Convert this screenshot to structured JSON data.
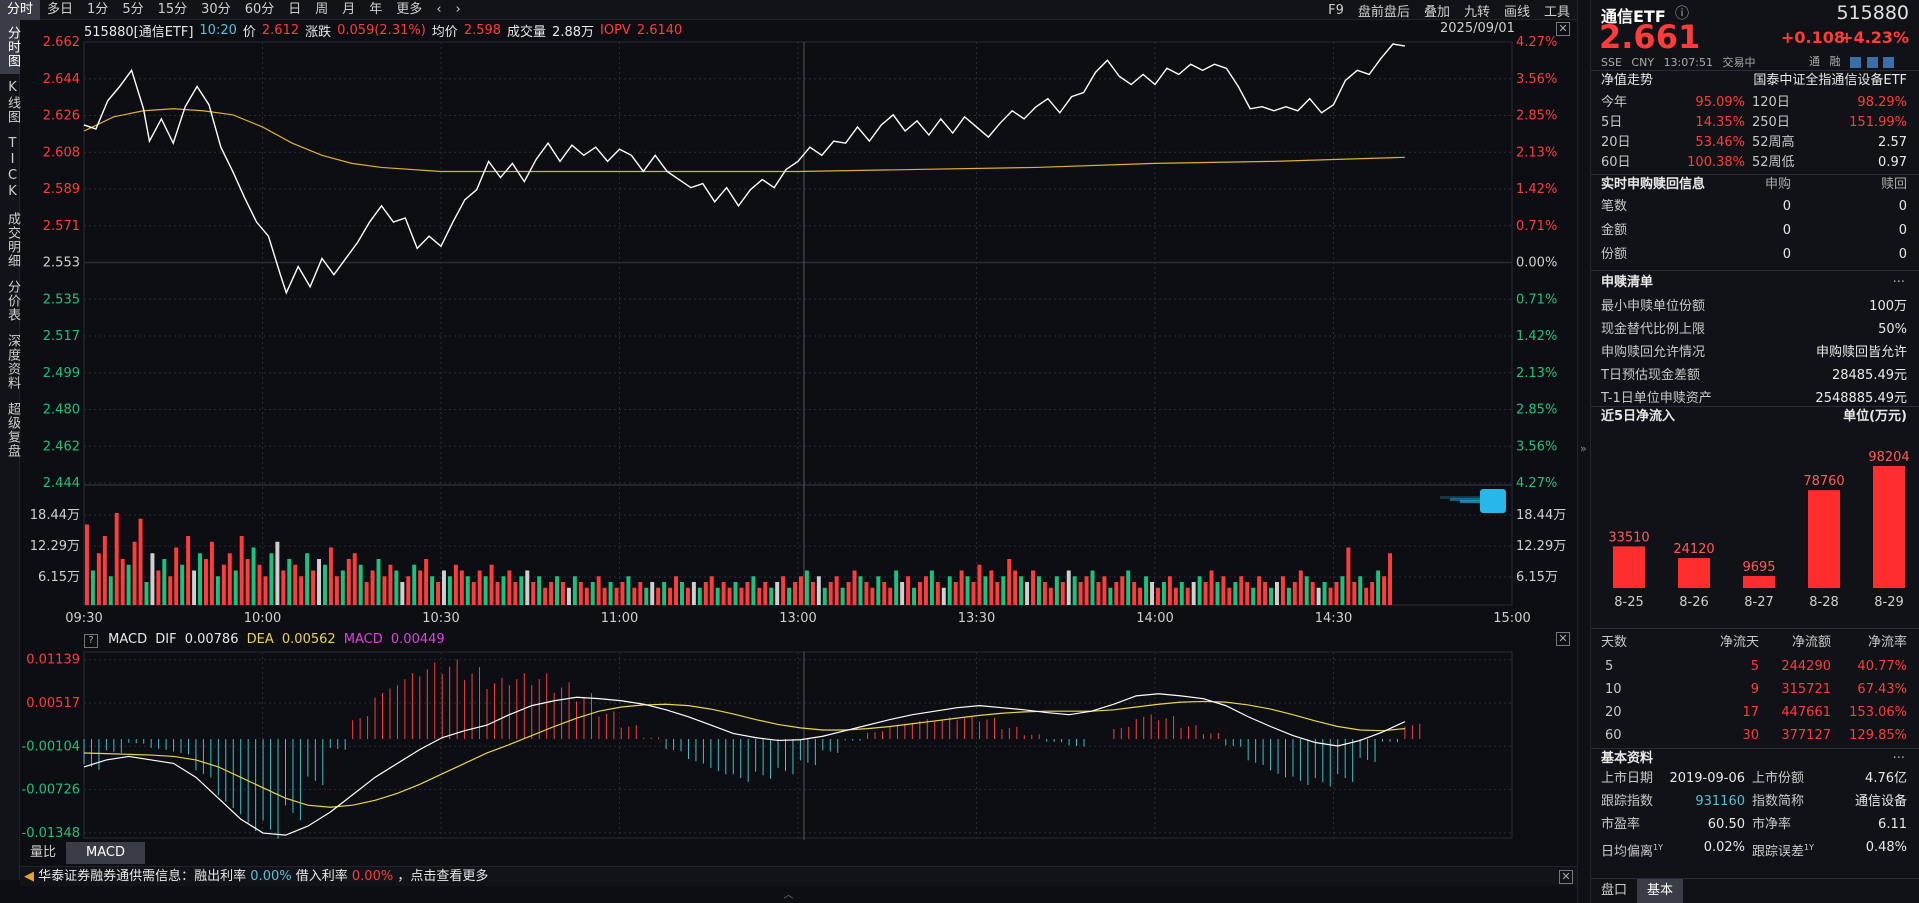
{
  "toolbar": {
    "tabs": [
      "分时",
      "多日",
      "1分",
      "5分",
      "15分",
      "30分",
      "60分",
      "日",
      "周",
      "月",
      "年",
      "更多"
    ],
    "right": [
      "F9",
      "盘前盘后",
      "叠加",
      "九转",
      "画线",
      "工具"
    ],
    "prev_icon": "‹",
    "next_icon": "›"
  },
  "vtabs": [
    "分时图",
    "K线图",
    "TICK",
    "成交明细",
    "分价表",
    "深度资料",
    "超级复盘"
  ],
  "info": {
    "code_name": "515880[通信ETF]",
    "time": "10:20",
    "price_label": "价",
    "price": "2.612",
    "change_label": "涨跌",
    "change": "0.059(2.31%)",
    "avg_label": "均价",
    "avg": "2.598",
    "volume_label": "成交量",
    "volume": "2.88万",
    "iopv_label": "IOPV",
    "iopv": "2.6140",
    "date": "2025/09/01",
    "close_icon": "✕"
  },
  "axes": {
    "price_ticks": [
      "2.662",
      "2.644",
      "2.626",
      "2.608",
      "2.589",
      "2.571",
      "2.553",
      "2.535",
      "2.517",
      "2.499",
      "2.480",
      "2.462",
      "2.444"
    ],
    "pct_ticks": [
      "4.27%",
      "3.56%",
      "2.85%",
      "2.13%",
      "1.42%",
      "0.71%",
      "0.00%",
      "0.71%",
      "1.42%",
      "2.13%",
      "2.85%",
      "3.56%",
      "4.27%"
    ],
    "vol_ticks": [
      "18.44万",
      "12.29万",
      "6.15万"
    ],
    "time_ticks": [
      "09:30",
      "10:00",
      "10:30",
      "11:00",
      "13:00",
      "13:30",
      "14:00",
      "14:30",
      "15:00"
    ],
    "macd_ticks": [
      "0.01139",
      "0.00517",
      "-0.00104",
      "-0.00726",
      "-0.01348"
    ]
  },
  "chart_data": {
    "type": "line",
    "ylim": [
      2.444,
      2.662
    ],
    "base_price": 2.553,
    "price_series": [
      {
        "t": 0,
        "v": 2.621
      },
      {
        "t": 2,
        "v": 2.619
      },
      {
        "t": 4,
        "v": 2.633
      },
      {
        "t": 6,
        "v": 2.64
      },
      {
        "t": 8,
        "v": 2.648
      },
      {
        "t": 10,
        "v": 2.629
      },
      {
        "t": 11,
        "v": 2.613
      },
      {
        "t": 13,
        "v": 2.624
      },
      {
        "t": 15,
        "v": 2.612
      },
      {
        "t": 17,
        "v": 2.63
      },
      {
        "t": 19,
        "v": 2.64
      },
      {
        "t": 21,
        "v": 2.631
      },
      {
        "t": 23,
        "v": 2.61
      },
      {
        "t": 25,
        "v": 2.598
      },
      {
        "t": 27,
        "v": 2.585
      },
      {
        "t": 29,
        "v": 2.573
      },
      {
        "t": 31,
        "v": 2.566
      },
      {
        "t": 33,
        "v": 2.547
      },
      {
        "t": 34,
        "v": 2.538
      },
      {
        "t": 36,
        "v": 2.551
      },
      {
        "t": 38,
        "v": 2.541
      },
      {
        "t": 40,
        "v": 2.555
      },
      {
        "t": 42,
        "v": 2.547
      },
      {
        "t": 44,
        "v": 2.555
      },
      {
        "t": 46,
        "v": 2.563
      },
      {
        "t": 48,
        "v": 2.573
      },
      {
        "t": 50,
        "v": 2.581
      },
      {
        "t": 52,
        "v": 2.573
      },
      {
        "t": 54,
        "v": 2.575
      },
      {
        "t": 56,
        "v": 2.56
      },
      {
        "t": 58,
        "v": 2.566
      },
      {
        "t": 60,
        "v": 2.561
      },
      {
        "t": 62,
        "v": 2.573
      },
      {
        "t": 64,
        "v": 2.584
      },
      {
        "t": 66,
        "v": 2.589
      },
      {
        "t": 68,
        "v": 2.603
      },
      {
        "t": 70,
        "v": 2.595
      },
      {
        "t": 72,
        "v": 2.602
      },
      {
        "t": 74,
        "v": 2.593
      },
      {
        "t": 76,
        "v": 2.604
      },
      {
        "t": 78,
        "v": 2.612
      },
      {
        "t": 80,
        "v": 2.603
      },
      {
        "t": 82,
        "v": 2.611
      },
      {
        "t": 84,
        "v": 2.606
      },
      {
        "t": 86,
        "v": 2.61
      },
      {
        "t": 88,
        "v": 2.603
      },
      {
        "t": 90,
        "v": 2.609
      },
      {
        "t": 92,
        "v": 2.606
      },
      {
        "t": 94,
        "v": 2.598
      },
      {
        "t": 96,
        "v": 2.606
      },
      {
        "t": 98,
        "v": 2.598
      },
      {
        "t": 100,
        "v": 2.594
      },
      {
        "t": 102,
        "v": 2.59
      },
      {
        "t": 104,
        "v": 2.592
      },
      {
        "t": 106,
        "v": 2.583
      },
      {
        "t": 108,
        "v": 2.59
      },
      {
        "t": 110,
        "v": 2.581
      },
      {
        "t": 112,
        "v": 2.589
      },
      {
        "t": 114,
        "v": 2.594
      },
      {
        "t": 116,
        "v": 2.59
      },
      {
        "t": 118,
        "v": 2.599
      },
      {
        "t": 120,
        "v": 2.603
      },
      {
        "t": 122,
        "v": 2.61
      },
      {
        "t": 124,
        "v": 2.606
      },
      {
        "t": 126,
        "v": 2.613
      },
      {
        "t": 128,
        "v": 2.612
      },
      {
        "t": 130,
        "v": 2.62
      },
      {
        "t": 132,
        "v": 2.613
      },
      {
        "t": 134,
        "v": 2.621
      },
      {
        "t": 136,
        "v": 2.626
      },
      {
        "t": 138,
        "v": 2.618
      },
      {
        "t": 140,
        "v": 2.623
      },
      {
        "t": 142,
        "v": 2.616
      },
      {
        "t": 144,
        "v": 2.624
      },
      {
        "t": 146,
        "v": 2.617
      },
      {
        "t": 148,
        "v": 2.625
      },
      {
        "t": 150,
        "v": 2.62
      },
      {
        "t": 152,
        "v": 2.615
      },
      {
        "t": 154,
        "v": 2.622
      },
      {
        "t": 156,
        "v": 2.628
      },
      {
        "t": 158,
        "v": 2.624
      },
      {
        "t": 160,
        "v": 2.63
      },
      {
        "t": 162,
        "v": 2.634
      },
      {
        "t": 164,
        "v": 2.627
      },
      {
        "t": 166,
        "v": 2.635
      },
      {
        "t": 168,
        "v": 2.637
      },
      {
        "t": 170,
        "v": 2.647
      },
      {
        "t": 172,
        "v": 2.653
      },
      {
        "t": 174,
        "v": 2.645
      },
      {
        "t": 176,
        "v": 2.641
      },
      {
        "t": 178,
        "v": 2.646
      },
      {
        "t": 180,
        "v": 2.641
      },
      {
        "t": 182,
        "v": 2.649
      },
      {
        "t": 184,
        "v": 2.646
      },
      {
        "t": 186,
        "v": 2.651
      },
      {
        "t": 188,
        "v": 2.648
      },
      {
        "t": 190,
        "v": 2.651
      },
      {
        "t": 192,
        "v": 2.649
      },
      {
        "t": 194,
        "v": 2.64
      },
      {
        "t": 196,
        "v": 2.629
      },
      {
        "t": 198,
        "v": 2.63
      },
      {
        "t": 200,
        "v": 2.628
      },
      {
        "t": 202,
        "v": 2.63
      },
      {
        "t": 204,
        "v": 2.628
      },
      {
        "t": 206,
        "v": 2.634
      },
      {
        "t": 208,
        "v": 2.627
      },
      {
        "t": 210,
        "v": 2.631
      },
      {
        "t": 212,
        "v": 2.643
      },
      {
        "t": 214,
        "v": 2.648
      },
      {
        "t": 216,
        "v": 2.646
      },
      {
        "t": 218,
        "v": 2.654
      },
      {
        "t": 220,
        "v": 2.661
      },
      {
        "t": 222,
        "v": 2.66
      }
    ],
    "avg_series": [
      {
        "t": 0,
        "v": 2.618
      },
      {
        "t": 5,
        "v": 2.625
      },
      {
        "t": 10,
        "v": 2.628
      },
      {
        "t": 15,
        "v": 2.629
      },
      {
        "t": 20,
        "v": 2.628
      },
      {
        "t": 25,
        "v": 2.626
      },
      {
        "t": 30,
        "v": 2.62
      },
      {
        "t": 35,
        "v": 2.612
      },
      {
        "t": 40,
        "v": 2.606
      },
      {
        "t": 45,
        "v": 2.602
      },
      {
        "t": 50,
        "v": 2.6
      },
      {
        "t": 60,
        "v": 2.598
      },
      {
        "t": 80,
        "v": 2.598
      },
      {
        "t": 100,
        "v": 2.598
      },
      {
        "t": 120,
        "v": 2.598
      },
      {
        "t": 140,
        "v": 2.599
      },
      {
        "t": 160,
        "v": 2.6
      },
      {
        "t": 180,
        "v": 2.602
      },
      {
        "t": 200,
        "v": 2.603
      },
      {
        "t": 222,
        "v": 2.605
      }
    ],
    "volume": [
      14,
      6,
      9,
      12,
      5,
      16,
      8,
      7,
      11,
      15,
      4,
      9,
      6,
      8,
      5,
      10,
      7,
      12,
      6,
      9,
      8,
      11,
      5,
      7,
      9,
      6,
      12,
      8,
      10,
      7,
      5,
      9,
      11,
      6,
      8,
      7,
      5,
      9,
      6,
      8,
      7,
      10,
      5,
      6,
      8,
      9,
      7,
      4,
      6,
      8,
      5,
      7,
      6,
      4,
      5,
      7,
      6,
      8,
      5,
      4,
      6,
      5,
      7,
      6,
      5,
      4,
      6,
      5,
      7,
      4,
      5,
      6,
      4,
      5,
      6,
      4,
      5,
      3,
      4,
      5,
      4,
      3,
      5,
      4,
      3,
      4,
      5,
      3,
      4,
      3,
      4,
      5,
      3,
      4,
      3,
      4,
      3,
      4,
      3,
      5,
      4,
      3,
      4,
      3,
      4,
      5,
      3,
      4,
      3,
      4,
      3,
      4,
      5,
      3,
      4,
      3,
      4,
      5,
      3,
      4,
      5,
      6,
      4,
      5,
      3,
      4,
      5,
      3,
      4,
      6,
      5,
      4,
      3,
      5,
      4,
      3,
      6,
      4,
      5,
      3,
      4,
      5,
      6,
      4,
      3,
      5,
      4,
      6,
      5,
      4,
      7,
      5,
      6,
      4,
      5,
      8,
      6,
      5,
      4,
      6,
      5,
      4,
      3,
      5,
      4,
      6,
      5,
      4,
      5,
      6,
      4,
      5,
      3,
      4,
      5,
      6,
      4,
      3,
      5,
      4,
      3,
      4,
      5,
      3,
      4,
      3,
      4,
      5,
      4,
      6,
      4,
      5,
      3,
      4,
      5,
      4,
      3,
      5,
      4,
      3,
      4,
      5,
      3,
      4,
      6,
      5,
      4,
      3,
      4,
      3,
      4,
      5,
      10,
      4,
      5,
      3,
      4,
      6,
      5,
      9
    ],
    "vol_max": 20,
    "macd_dif": [
      -0.004,
      -0.003,
      -0.0025,
      -0.003,
      -0.0035,
      -0.0055,
      -0.0085,
      -0.0115,
      -0.0135,
      -0.0138,
      -0.0125,
      -0.0105,
      -0.008,
      -0.0055,
      -0.0035,
      -0.0015,
      0.0002,
      0.0012,
      0.002,
      0.0035,
      0.0048,
      0.0055,
      0.006,
      0.0058,
      0.0055,
      0.005,
      0.0042,
      0.0032,
      0.002,
      0.0008,
      0.0002,
      -0.0002,
      -0.0001,
      0.0004,
      0.0012,
      0.002,
      0.0028,
      0.0035,
      0.004,
      0.0045,
      0.0048,
      0.0045,
      0.0042,
      0.0038,
      0.0035,
      0.004,
      0.005,
      0.0062,
      0.0065,
      0.0062,
      0.0058,
      0.0048,
      0.0032,
      0.0018,
      0.0005,
      -0.0005,
      -0.001,
      -0.0002,
      0.001,
      0.0025
    ],
    "macd_dea": [
      -0.002,
      -0.0021,
      -0.0022,
      -0.0023,
      -0.0025,
      -0.003,
      -0.004,
      -0.0055,
      -0.007,
      -0.0085,
      -0.0095,
      -0.0098,
      -0.0095,
      -0.0088,
      -0.0078,
      -0.0065,
      -0.005,
      -0.0035,
      -0.002,
      -0.0008,
      0.0005,
      0.0018,
      0.003,
      0.004,
      0.0046,
      0.0049,
      0.005,
      0.0048,
      0.0043,
      0.0036,
      0.0028,
      0.0021,
      0.0016,
      0.0013,
      0.0013,
      0.0015,
      0.0018,
      0.0022,
      0.0026,
      0.003,
      0.0034,
      0.0037,
      0.0039,
      0.004,
      0.004,
      0.004,
      0.0042,
      0.0046,
      0.005,
      0.0053,
      0.0054,
      0.0053,
      0.0049,
      0.0043,
      0.0035,
      0.0026,
      0.0018,
      0.0013,
      0.0012,
      0.0015
    ],
    "macd_hist": [
      -0.004,
      -0.0018,
      -0.0006,
      -0.0014,
      -0.002,
      -0.005,
      -0.009,
      -0.012,
      -0.013,
      -0.0106,
      -0.006,
      -0.0014,
      0.003,
      0.0066,
      0.0086,
      0.01,
      0.0104,
      0.0094,
      0.008,
      0.0086,
      0.0086,
      0.0074,
      0.006,
      0.0036,
      0.0018,
      0.0002,
      -0.0016,
      -0.0032,
      -0.0046,
      -0.0056,
      -0.0052,
      -0.0046,
      -0.0034,
      -0.0018,
      -0.0002,
      0.001,
      0.002,
      0.0026,
      0.0028,
      0.003,
      0.0028,
      0.0016,
      0.0006,
      -0.0004,
      -0.001,
      0,
      0.0016,
      0.0032,
      0.003,
      0.0018,
      0.0008,
      -0.001,
      -0.0034,
      -0.005,
      -0.006,
      -0.0062,
      -0.0056,
      -0.003,
      -0.0004,
      0.002
    ],
    "macd_ylim": [
      -0.0145,
      0.0125
    ]
  },
  "macd": {
    "q_icon": "?",
    "title": "MACD",
    "dif_label": "DIF",
    "dif": "0.00786",
    "dea_label": "DEA",
    "dea": "0.00562",
    "macd_label": "MACD",
    "macd_val": "0.00449",
    "close_icon": "✕"
  },
  "indicator_tabs": [
    "量比",
    "MACD"
  ],
  "marginbar": {
    "text1": "华泰证券融券通供需信息：融出利率",
    "rate1": "0.00%",
    "text2": "借入利率",
    "rate2": "0.00%",
    "text3": "，点击查看更多",
    "close_icon": "✕"
  },
  "collapse_icon": "»",
  "bottom_icon": "︿",
  "right_panel": {
    "name": "通信ETF",
    "alert_icon": "ⓘ",
    "code": "515880",
    "price": "2.661",
    "change": "+0.108",
    "change_pct": "+4.23%",
    "exchange": "SSE",
    "currency": "CNY",
    "time": "13:07:51",
    "status": "交易中",
    "tong": "通",
    "rong": "融",
    "nav_title": "净值走势",
    "nav_fund": "国泰中证全指通信设备ETF",
    "perf": [
      {
        "l": "今年",
        "v": "95.09%",
        "l2": "120日",
        "v2": "98.29%"
      },
      {
        "l": "5日",
        "v": "14.35%",
        "l2": "250日",
        "v2": "151.99%"
      },
      {
        "l": "20日",
        "v": "53.46%",
        "l2": "52周高",
        "v2": "2.57"
      },
      {
        "l": "60日",
        "v": "100.38%",
        "l2": "52周低",
        "v2": "0.97"
      }
    ],
    "sub_title": "实时申购赎回信息",
    "sub_col1": "申购",
    "sub_col2": "赎回",
    "sub_rows": [
      {
        "l": "笔数",
        "a": "0",
        "b": "0"
      },
      {
        "l": "金额",
        "a": "0",
        "b": "0"
      },
      {
        "l": "份额",
        "a": "0",
        "b": "0"
      }
    ],
    "list_title": "申赎清单",
    "more": "···",
    "list_rows": [
      {
        "l": "最小申赎单位份额",
        "v": "100万"
      },
      {
        "l": "现金替代比例上限",
        "v": "50%"
      },
      {
        "l": "申购赎回允许情况",
        "v": "申购赎回皆允许"
      },
      {
        "l": "T日预估现金差额",
        "v": "28485.49元"
      },
      {
        "l": "T-1日单位申赎资产",
        "v": "2548885.49元"
      }
    ],
    "flow_title": "近5日净流入",
    "flow_unit": "单位(万元)",
    "flow_chart": {
      "categories": [
        "8-25",
        "8-26",
        "8-27",
        "8-28",
        "8-29"
      ],
      "values": [
        33510,
        24120,
        9695,
        78760,
        98204
      ],
      "ymax": 98204
    },
    "flow_head": [
      "天数",
      "净流天",
      "净流额",
      "净流率"
    ],
    "flow_rows": [
      {
        "d": "5",
        "n": "5",
        "a": "244290",
        "r": "40.77%"
      },
      {
        "d": "10",
        "n": "9",
        "a": "315721",
        "r": "67.43%"
      },
      {
        "d": "20",
        "n": "17",
        "a": "447661",
        "r": "153.06%"
      },
      {
        "d": "60",
        "n": "30",
        "a": "377127",
        "r": "129.85%"
      }
    ],
    "basic_title": "基本资料",
    "basic_rows": [
      {
        "l": "上市日期",
        "v": "2019-09-06",
        "l2": "上市份额",
        "v2": "4.76亿"
      },
      {
        "l": "跟踪指数",
        "v": "931160",
        "l2": "指数简称",
        "v2": "通信设备"
      },
      {
        "l": "市盈率",
        "v": "60.50",
        "l2": "市净率",
        "v2": "6.11"
      },
      {
        "l": "日均偏离",
        "v": "0.02%",
        "l2": "跟踪误差",
        "v2": "0.48%"
      }
    ],
    "ty": "1Y",
    "bottom_tabs": [
      "盘口",
      "基本"
    ]
  },
  "colors": {
    "price_line": "#ffffff",
    "avg_line": "#e0b030",
    "up": "#ff3b3b",
    "down": "#19c37d",
    "dif": "#ffffff",
    "dea": "#e8d44d",
    "hist_up": "#ff3b3b",
    "hist_down": "#35c4c8",
    "grid": "#2a2c35",
    "bar": "#ff2d2d"
  }
}
